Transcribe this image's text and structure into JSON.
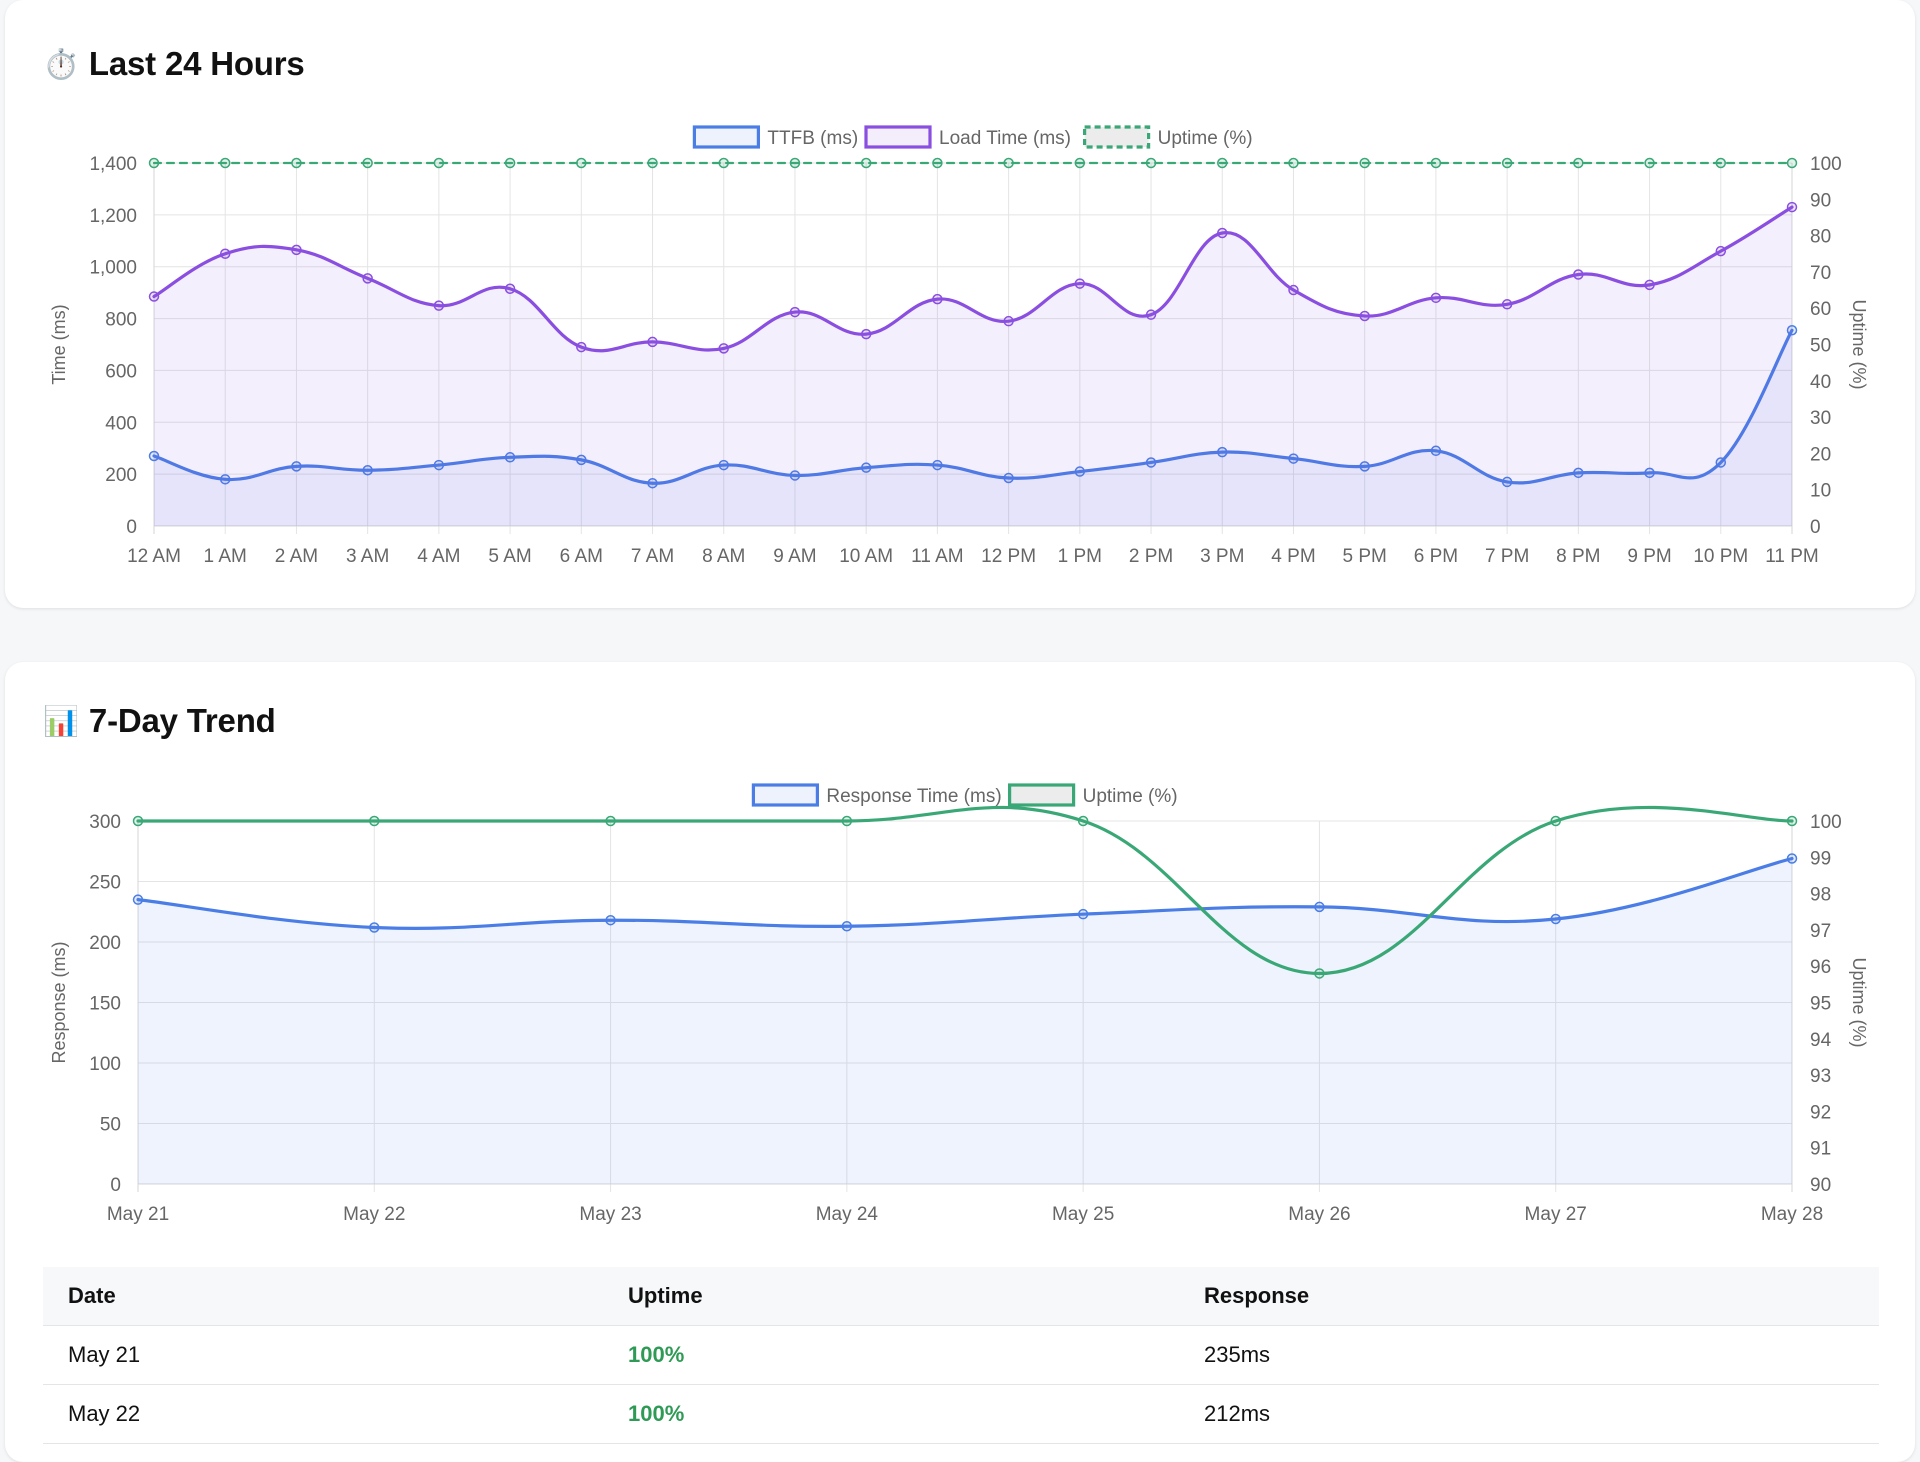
{
  "cards": {
    "last24": {
      "icon": "stopwatch-icon",
      "emoji": "⏱️",
      "title": "Last 24 Hours"
    },
    "trend": {
      "icon": "bar-chart-icon",
      "emoji": "📊",
      "title": "7-Day Trend"
    }
  },
  "chart_data": [
    {
      "type": "line",
      "x": [
        "12 AM",
        "1 AM",
        "2 AM",
        "3 AM",
        "4 AM",
        "5 AM",
        "6 AM",
        "7 AM",
        "8 AM",
        "9 AM",
        "10 AM",
        "11 AM",
        "12 PM",
        "1 PM",
        "2 PM",
        "3 PM",
        "4 PM",
        "5 PM",
        "6 PM",
        "7 PM",
        "8 PM",
        "9 PM",
        "10 PM",
        "11 PM"
      ],
      "series": [
        {
          "name": "TTFB (ms)",
          "axis": "left",
          "color": "#4a7ee6",
          "fill": true,
          "values": [
            270,
            180,
            230,
            215,
            235,
            265,
            255,
            165,
            235,
            195,
            225,
            235,
            185,
            210,
            245,
            285,
            260,
            230,
            290,
            170,
            205,
            205,
            245,
            755
          ]
        },
        {
          "name": "Load Time (ms)",
          "axis": "left",
          "color": "#8a4fe0",
          "fill": true,
          "values": [
            885,
            1050,
            1065,
            955,
            850,
            915,
            690,
            710,
            685,
            825,
            740,
            875,
            790,
            935,
            815,
            1130,
            910,
            810,
            880,
            855,
            970,
            930,
            1060,
            1230
          ]
        },
        {
          "name": "Uptime (%)",
          "axis": "right",
          "color": "#3aa876",
          "dashed": true,
          "fill": false,
          "values": [
            100,
            100,
            100,
            100,
            100,
            100,
            100,
            100,
            100,
            100,
            100,
            100,
            100,
            100,
            100,
            100,
            100,
            100,
            100,
            100,
            100,
            100,
            100,
            100
          ]
        }
      ],
      "ylim": [
        0,
        1400
      ],
      "y_ticks": [
        "0",
        "200",
        "400",
        "600",
        "800",
        "1,000",
        "1,200",
        "1,400"
      ],
      "y2lim": [
        0,
        100
      ],
      "y2_ticks": [
        "0",
        "10",
        "20",
        "30",
        "40",
        "50",
        "60",
        "70",
        "80",
        "90",
        "100"
      ],
      "ylabel": "Time (ms)",
      "y2label": "Uptime (%)",
      "legend": "top-center",
      "grid": true
    },
    {
      "type": "line",
      "x": [
        "May 21",
        "May 22",
        "May 23",
        "May 24",
        "May 25",
        "May 26",
        "May 27",
        "May 28"
      ],
      "series": [
        {
          "name": "Response Time (ms)",
          "axis": "left",
          "color": "#4a7ee6",
          "fill": true,
          "values": [
            235,
            212,
            218,
            213,
            223,
            229,
            219,
            269
          ]
        },
        {
          "name": "Uptime (%)",
          "axis": "right",
          "color": "#3aa876",
          "fill": false,
          "values": [
            100,
            100,
            100,
            100,
            100,
            95.8,
            100,
            100
          ]
        }
      ],
      "ylim": [
        0,
        300
      ],
      "y_ticks": [
        "0",
        "50",
        "100",
        "150",
        "200",
        "250",
        "300"
      ],
      "y2lim": [
        90,
        100
      ],
      "y2_ticks": [
        "90",
        "91",
        "92",
        "93",
        "94",
        "95",
        "96",
        "97",
        "98",
        "99",
        "100"
      ],
      "ylabel": "Response (ms)",
      "y2label": "Uptime (%)",
      "legend": "top-center",
      "grid": true
    }
  ],
  "table": {
    "headers": [
      "Date",
      "Uptime",
      "Response"
    ],
    "rows": [
      {
        "date": "May 21",
        "uptime": "100%",
        "response": "235ms"
      },
      {
        "date": "May 22",
        "uptime": "100%",
        "response": "212ms"
      }
    ]
  }
}
